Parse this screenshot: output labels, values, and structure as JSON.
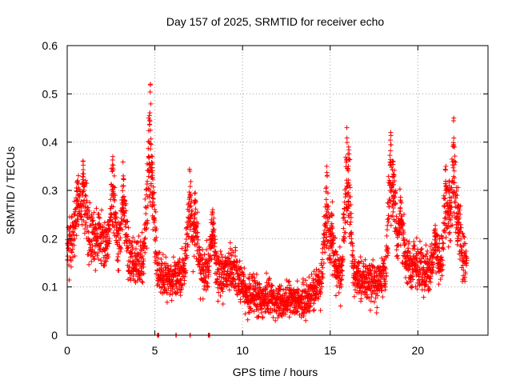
{
  "chart_data": {
    "type": "scatter",
    "title": "Day 157 of 2025, SRMTID for receiver echo",
    "xlabel": "GPS time / hours",
    "ylabel": "SRMTID / TECUs",
    "xlim": [
      0,
      24
    ],
    "ylim": [
      0,
      0.6
    ],
    "xticks": [
      0,
      5,
      10,
      15,
      20
    ],
    "xtick_labels": [
      "0",
      "5",
      "10",
      "15",
      "20"
    ],
    "yticks": [
      0,
      0.1,
      0.2,
      0.3,
      0.4,
      0.5,
      0.6
    ],
    "ytick_labels": [
      "0",
      "0.1",
      "0.2",
      "0.3",
      "0.4",
      "0.5",
      "0.6"
    ],
    "grid": true,
    "marker": "+",
    "color": "#ff0000",
    "series": [
      {
        "name": "SRMTID",
        "trend": [
          [
            0.0,
            0.19
          ],
          [
            0.5,
            0.2
          ],
          [
            1.0,
            0.21
          ],
          [
            1.5,
            0.2
          ],
          [
            2.0,
            0.19
          ],
          [
            2.5,
            0.18
          ],
          [
            3.0,
            0.17
          ],
          [
            3.5,
            0.16
          ],
          [
            4.0,
            0.15
          ],
          [
            4.5,
            0.15
          ],
          [
            5.0,
            0.14
          ],
          [
            5.5,
            0.12
          ],
          [
            6.0,
            0.11
          ],
          [
            6.5,
            0.13
          ],
          [
            7.0,
            0.15
          ],
          [
            7.5,
            0.14
          ],
          [
            8.0,
            0.13
          ],
          [
            8.5,
            0.12
          ],
          [
            9.0,
            0.13
          ],
          [
            9.5,
            0.14
          ],
          [
            10.0,
            0.1
          ],
          [
            10.5,
            0.08
          ],
          [
            11.0,
            0.08
          ],
          [
            11.5,
            0.08
          ],
          [
            12.0,
            0.07
          ],
          [
            12.5,
            0.07
          ],
          [
            13.0,
            0.07
          ],
          [
            13.5,
            0.07
          ],
          [
            14.0,
            0.09
          ],
          [
            14.5,
            0.11
          ],
          [
            15.0,
            0.12
          ],
          [
            15.5,
            0.13
          ],
          [
            16.0,
            0.13
          ],
          [
            16.5,
            0.12
          ],
          [
            17.0,
            0.11
          ],
          [
            17.5,
            0.11
          ],
          [
            18.0,
            0.12
          ],
          [
            18.5,
            0.15
          ],
          [
            19.0,
            0.16
          ],
          [
            19.5,
            0.15
          ],
          [
            20.0,
            0.14
          ],
          [
            20.5,
            0.13
          ],
          [
            21.0,
            0.13
          ],
          [
            21.5,
            0.15
          ],
          [
            22.0,
            0.16
          ],
          [
            22.5,
            0.16
          ],
          [
            22.8,
            0.15
          ]
        ],
        "spikes": [
          [
            0.6,
            0.32
          ],
          [
            0.9,
            0.36
          ],
          [
            2.6,
            0.37
          ],
          [
            3.2,
            0.33
          ],
          [
            4.65,
            0.45
          ],
          [
            4.75,
            0.52
          ],
          [
            4.85,
            0.37
          ],
          [
            7.0,
            0.34
          ],
          [
            7.3,
            0.28
          ],
          [
            8.3,
            0.26
          ],
          [
            14.8,
            0.35
          ],
          [
            15.1,
            0.25
          ],
          [
            15.95,
            0.43
          ],
          [
            16.05,
            0.39
          ],
          [
            18.45,
            0.42
          ],
          [
            18.6,
            0.36
          ],
          [
            19.0,
            0.28
          ],
          [
            21.0,
            0.22
          ],
          [
            21.6,
            0.35
          ],
          [
            21.8,
            0.32
          ],
          [
            22.05,
            0.45
          ],
          [
            22.3,
            0.27
          ]
        ],
        "zero_points": [
          5.15,
          5.2,
          6.2,
          7.0,
          8.05,
          8.1
        ]
      }
    ]
  }
}
